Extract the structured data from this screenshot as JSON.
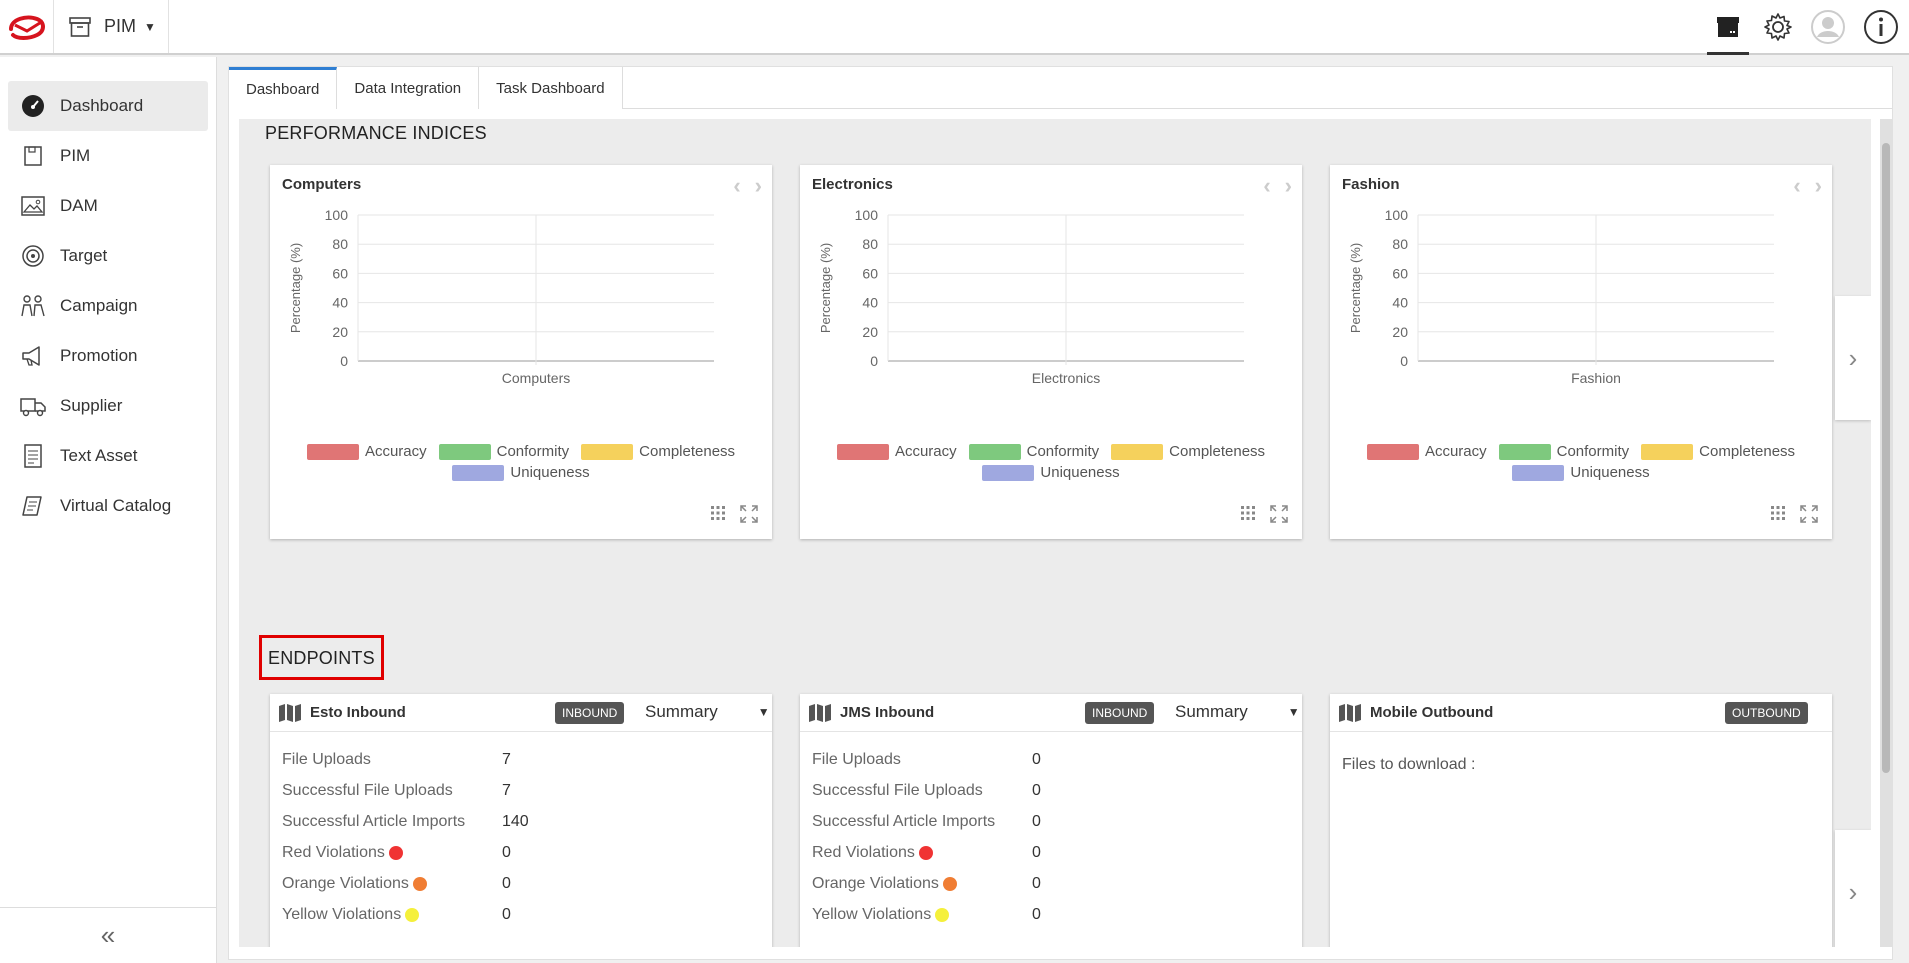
{
  "app": {
    "name": "PIM"
  },
  "sidebar": {
    "items": [
      {
        "label": "Dashboard",
        "icon": "dashboard-icon"
      },
      {
        "label": "PIM",
        "icon": "pim-icon"
      },
      {
        "label": "DAM",
        "icon": "image-icon"
      },
      {
        "label": "Target",
        "icon": "target-icon"
      },
      {
        "label": "Campaign",
        "icon": "campaign-icon"
      },
      {
        "label": "Promotion",
        "icon": "megaphone-icon"
      },
      {
        "label": "Supplier",
        "icon": "truck-icon"
      },
      {
        "label": "Text Asset",
        "icon": "document-icon"
      },
      {
        "label": "Virtual Catalog",
        "icon": "catalog-icon"
      }
    ],
    "collapse_label": "«"
  },
  "tabs": [
    "Dashboard",
    "Data Integration",
    "Task Dashboard"
  ],
  "performance": {
    "title": "PERFORMANCE INDICES",
    "ylabel": "Percentage (%)",
    "legend": [
      {
        "name": "Accuracy",
        "color": "#e07575"
      },
      {
        "name": "Conformity",
        "color": "#7ec97e"
      },
      {
        "name": "Completeness",
        "color": "#f5d15c"
      },
      {
        "name": "Uniqueness",
        "color": "#9fa8e0"
      }
    ]
  },
  "chart_data": [
    {
      "type": "bar",
      "title": "Computers",
      "categories": [
        "Computers"
      ],
      "xlabel": "Computers",
      "ylabel": "Percentage (%)",
      "ylim": [
        0,
        100
      ],
      "yticks": [
        "100",
        "80",
        "60",
        "40",
        "20",
        "0"
      ],
      "series": []
    },
    {
      "type": "bar",
      "title": "Electronics",
      "categories": [
        "Electronics"
      ],
      "xlabel": "Electronics",
      "ylabel": "Percentage (%)",
      "ylim": [
        0,
        100
      ],
      "yticks": [
        "100",
        "80",
        "60",
        "40",
        "20",
        "0"
      ],
      "series": []
    },
    {
      "type": "bar",
      "title": "Fashion",
      "categories": [
        "Fashion"
      ],
      "xlabel": "Fashion",
      "ylabel": "Percentage (%)",
      "ylim": [
        0,
        100
      ],
      "yticks": [
        "100",
        "80",
        "60",
        "40",
        "20",
        "0"
      ],
      "series": []
    }
  ],
  "endpoints": {
    "title": "ENDPOINTS",
    "cards": [
      {
        "name": "Esto Inbound",
        "badge": "INBOUND",
        "view": "Summary",
        "rows": [
          {
            "label": "File Uploads",
            "value": "7"
          },
          {
            "label": "Successful File Uploads",
            "value": "7"
          },
          {
            "label": "Successful Article Imports",
            "value": "140"
          },
          {
            "label": "Red Violations",
            "value": "0",
            "dot": "#f03333"
          },
          {
            "label": "Orange Violations",
            "value": "0",
            "dot": "#f07d33"
          },
          {
            "label": "Yellow Violations",
            "value": "0",
            "dot": "#f5f03b"
          }
        ]
      },
      {
        "name": "JMS Inbound",
        "badge": "INBOUND",
        "view": "Summary",
        "rows": [
          {
            "label": "File Uploads",
            "value": "0"
          },
          {
            "label": "Successful File Uploads",
            "value": "0"
          },
          {
            "label": "Successful Article Imports",
            "value": "0"
          },
          {
            "label": "Red Violations",
            "value": "0",
            "dot": "#f03333"
          },
          {
            "label": "Orange Violations",
            "value": "0",
            "dot": "#f07d33"
          },
          {
            "label": "Yellow Violations",
            "value": "0",
            "dot": "#f5f03b"
          }
        ]
      },
      {
        "name": "Mobile Outbound",
        "badge": "OUTBOUND",
        "files_label": "Files to download :"
      }
    ]
  }
}
